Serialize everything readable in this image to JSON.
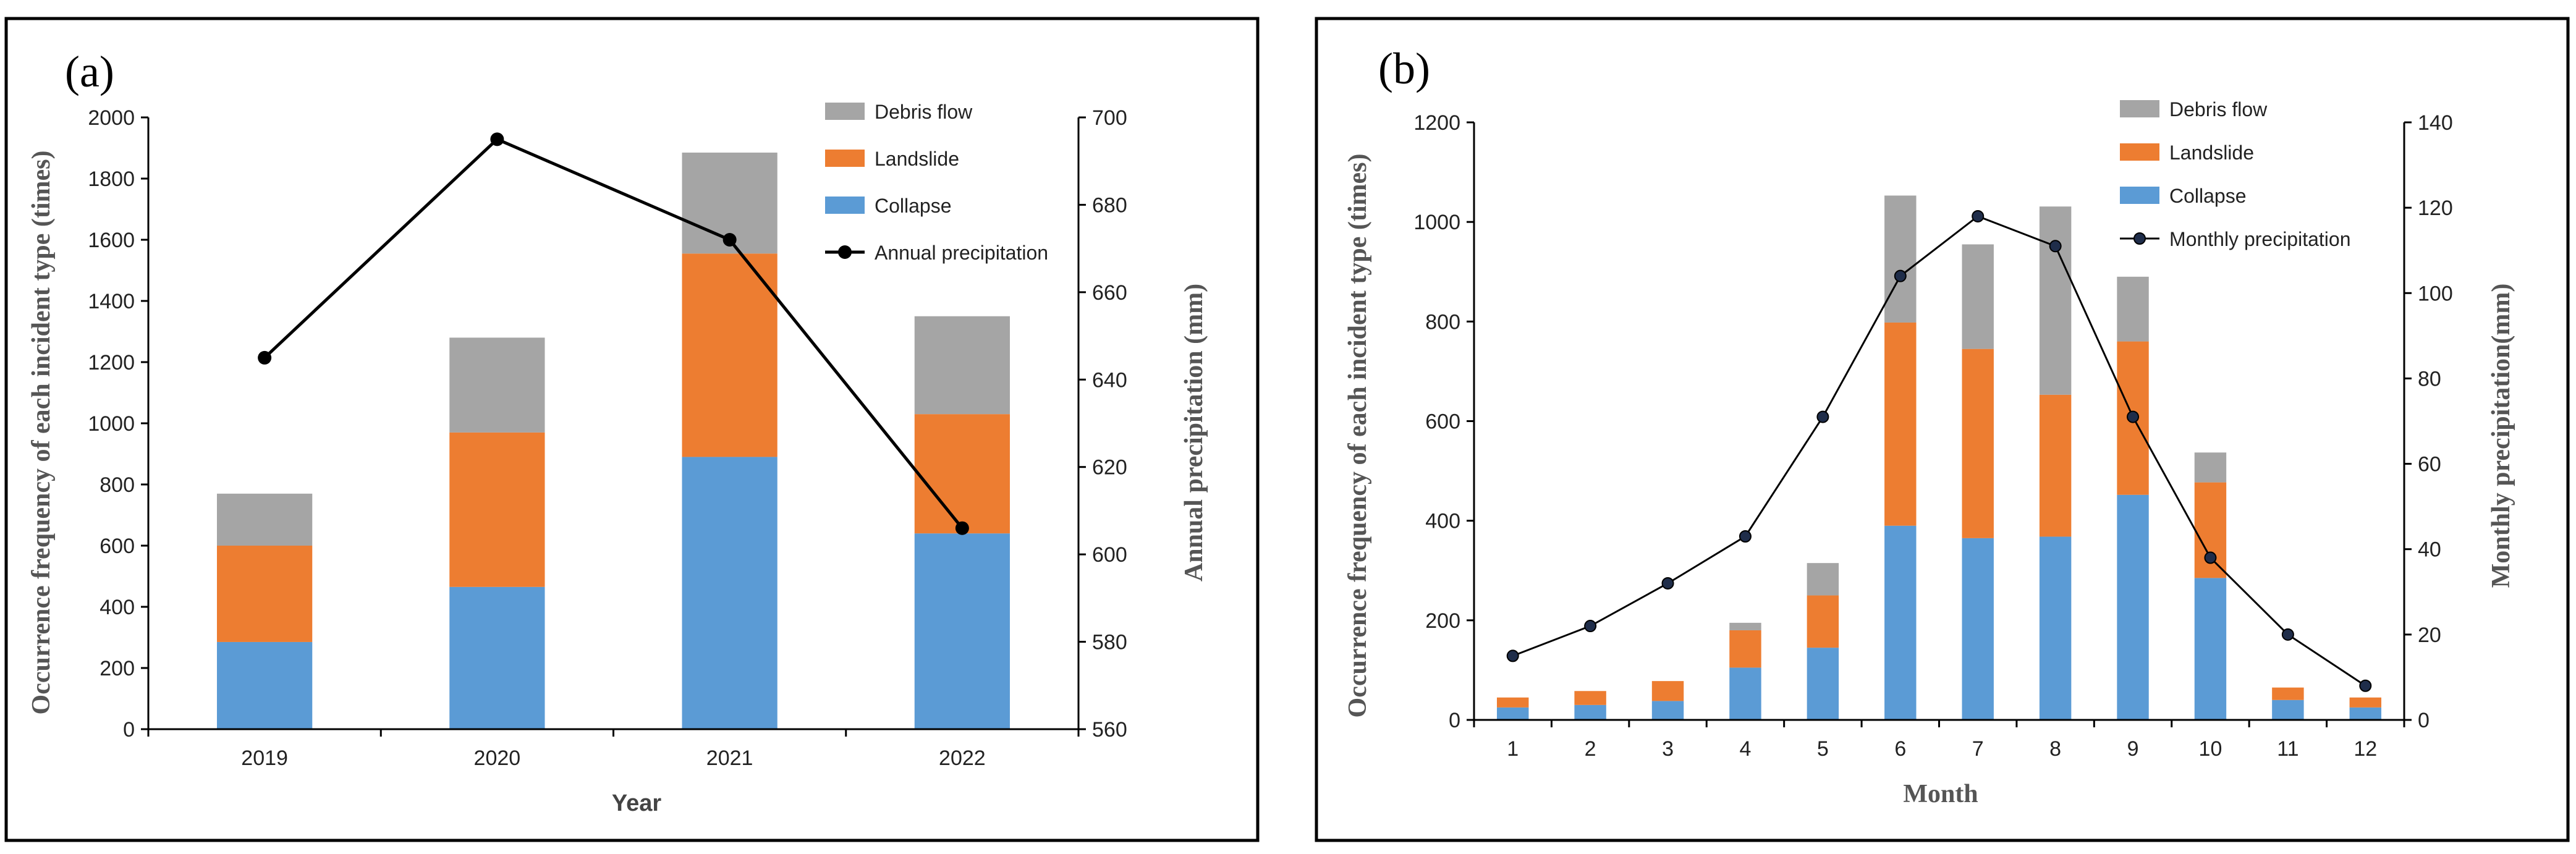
{
  "chart_data": [
    {
      "type": "bar",
      "stacked": true,
      "panel_label": "(a)",
      "xlabel": "Year",
      "ylabel": "Occurrence frequency of each incident type (times)",
      "y2label": "Annual precipitation   (mm)",
      "categories": [
        "2019",
        "2020",
        "2021",
        "2022"
      ],
      "ylim": [
        0,
        2000
      ],
      "yticks": [
        0,
        200,
        400,
        600,
        800,
        1000,
        1200,
        1400,
        1600,
        1800,
        2000
      ],
      "y2lim": [
        560,
        700
      ],
      "y2ticks": [
        560,
        580,
        600,
        620,
        640,
        660,
        680,
        700
      ],
      "series": [
        {
          "name": "Collapse",
          "color": "#5b9bd5",
          "values": [
            285,
            465,
            890,
            640
          ]
        },
        {
          "name": "Landslide",
          "color": "#ed7d31",
          "values": [
            315,
            505,
            665,
            390
          ]
        },
        {
          "name": "Debris flow",
          "color": "#a5a5a5",
          "values": [
            170,
            310,
            330,
            320
          ]
        }
      ],
      "line": {
        "name": "Annual precipitation",
        "color": "#000000",
        "axis": "right",
        "values": [
          645,
          695,
          672,
          606
        ]
      },
      "legend": [
        "Debris flow",
        "Landslide",
        "Collapse",
        "Annual precipitation"
      ],
      "legend_position": "top-right"
    },
    {
      "type": "bar",
      "stacked": true,
      "panel_label": "(b)",
      "xlabel": "Month",
      "ylabel": "Occurrence frequency of each incident type (times)",
      "y2label": "Monthly precipitation(mm)",
      "categories": [
        "1",
        "2",
        "3",
        "4",
        "5",
        "6",
        "7",
        "8",
        "9",
        "10",
        "11",
        "12"
      ],
      "ylim": [
        0,
        1200
      ],
      "yticks": [
        0,
        200,
        400,
        600,
        800,
        1000,
        1200
      ],
      "y2lim": [
        0,
        140
      ],
      "y2ticks": [
        0,
        20,
        40,
        60,
        80,
        100,
        120,
        140
      ],
      "series": [
        {
          "name": "Collapse",
          "color": "#5b9bd5",
          "values": [
            25,
            30,
            38,
            105,
            145,
            390,
            365,
            368,
            452,
            285,
            40,
            25
          ]
        },
        {
          "name": "Landslide",
          "color": "#ed7d31",
          "values": [
            20,
            28,
            40,
            75,
            105,
            408,
            380,
            285,
            308,
            192,
            25,
            20
          ]
        },
        {
          "name": "Debris flow",
          "color": "#a5a5a5",
          "values": [
            0,
            0,
            0,
            15,
            65,
            255,
            210,
            378,
            130,
            60,
            0,
            0
          ]
        }
      ],
      "line": {
        "name": "Monthly precipitation",
        "color": "#000000",
        "axis": "right",
        "values": [
          15,
          22,
          32,
          43,
          71,
          104,
          118,
          111,
          71,
          38,
          20,
          8
        ]
      },
      "legend": [
        "Debris flow",
        "Landslide",
        "Collapse",
        "Monthly precipitation"
      ],
      "legend_position": "top-right"
    }
  ]
}
